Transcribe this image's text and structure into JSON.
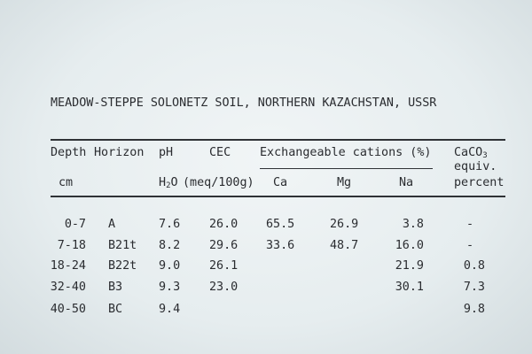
{
  "title": "MEADOW-STEPPE SOLONETZ SOIL, NORTHERN KAZACHSTAN, USSR",
  "header": {
    "depth": "Depth",
    "depth_unit": "cm",
    "horizon": "Horizon",
    "ph": "pH",
    "ph_sub_h": "H",
    "ph_sub_2": "2",
    "ph_sub_o": "O",
    "cec": "CEC",
    "cec_unit": "(meq/100g)",
    "cations_group": "Exchangeable cations (%)",
    "ca": "Ca",
    "mg": "Mg",
    "na": "Na",
    "caco3_main": "CaCO",
    "caco3_sub": "3",
    "caco3_line2": "equiv.",
    "caco3_line3": "percent"
  },
  "rows": [
    {
      "depth": "0-7",
      "horizon": "A",
      "ph": "7.6",
      "cec": "26.0",
      "ca": "65.5",
      "mg": "26.9",
      "na": "3.8",
      "caco3": "-"
    },
    {
      "depth": "7-18",
      "horizon": "B21t",
      "ph": "8.2",
      "cec": "29.6",
      "ca": "33.6",
      "mg": "48.7",
      "na": "16.0",
      "caco3": "-"
    },
    {
      "depth": "18-24",
      "horizon": "B22t",
      "ph": "9.0",
      "cec": "26.1",
      "ca": "",
      "mg": "",
      "na": "21.9",
      "caco3": "0.8"
    },
    {
      "depth": "32-40",
      "horizon": "B3",
      "ph": "9.3",
      "cec": "23.0",
      "ca": "",
      "mg": "",
      "na": "30.1",
      "caco3": "7.3"
    },
    {
      "depth": "40-50",
      "horizon": "BC",
      "ph": "9.4",
      "cec": "",
      "ca": "",
      "mg": "",
      "na": "",
      "caco3": "9.8"
    }
  ]
}
